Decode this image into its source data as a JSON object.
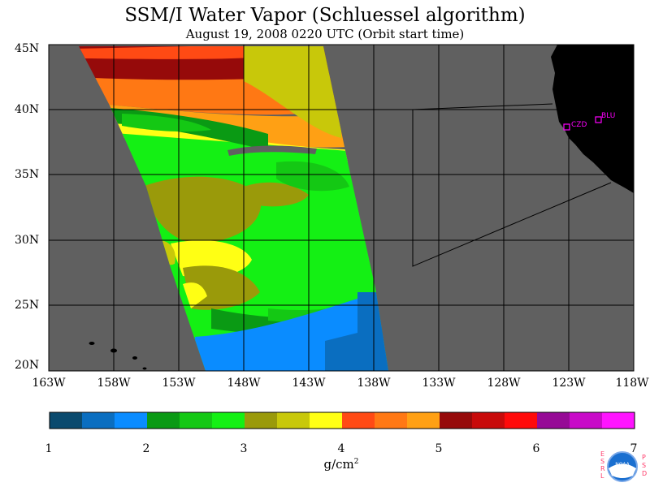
{
  "title": "SSM/I Water Vapor (Schluessel algorithm)",
  "subtitle": "August 19, 2008  0220 UTC  (Orbit start time)",
  "lat_labels": [
    "45N",
    "40N",
    "35N",
    "30N",
    "25N",
    "20N"
  ],
  "lon_labels": [
    "163W",
    "158W",
    "153W",
    "148W",
    "143W",
    "138W",
    "133W",
    "128W",
    "123W",
    "118W"
  ],
  "stations": [
    "CZD",
    "BLU"
  ],
  "colorbar": {
    "ticks": [
      "1",
      "2",
      "3",
      "4",
      "5",
      "6",
      "7"
    ],
    "unit_base": "g/cm",
    "unit_exp": "2",
    "range": [
      1,
      7
    ],
    "colors": [
      "#0a4a6e",
      "#0a6ec0",
      "#0a8cff",
      "#0a9a14",
      "#14c814",
      "#14f014",
      "#9a9a0a",
      "#c8c80a",
      "#ffff14",
      "#ff4a14",
      "#ff7814",
      "#ffa014",
      "#960a0a",
      "#c80a0a",
      "#ff0a0a",
      "#960a96",
      "#c80ac8",
      "#ff14ff"
    ]
  },
  "colors": {
    "background_no_data": "#606060",
    "land": "#000000",
    "station": "#ff00ff",
    "grid": "#000000"
  },
  "logo": {
    "left_text": "ESRL",
    "right_text": "PSD",
    "center_text": "NOAA"
  }
}
